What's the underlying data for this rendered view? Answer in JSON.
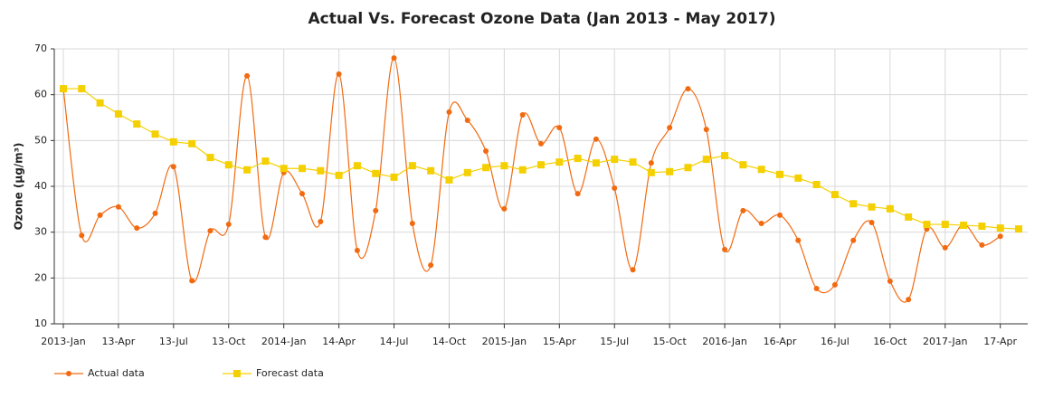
{
  "chart_data": {
    "type": "line",
    "title": "Actual Vs. Forecast Ozone Data (Jan 2013 - May 2017)",
    "y_label": "Ozone (µg/m³)",
    "categories": [
      "2013-Jan",
      null,
      null,
      "13-Apr",
      null,
      null,
      "13-Jul",
      null,
      null,
      "13-Oct",
      null,
      null,
      "2014-Jan",
      null,
      null,
      "14-Apr",
      null,
      null,
      "14-Jul",
      null,
      null,
      "14-Oct",
      null,
      null,
      "2015-Jan",
      null,
      null,
      "15-Apr",
      null,
      null,
      "15-Jul",
      null,
      null,
      "15-Oct",
      null,
      null,
      "2016-Jan",
      null,
      null,
      "16-Apr",
      null,
      null,
      "16-Jul",
      null,
      null,
      "16-Oct",
      null,
      null,
      "2017-Jan",
      null,
      null,
      "17-Apr",
      null
    ],
    "series": [
      {
        "name": "Actual data",
        "color": "#f26a10",
        "marker": "circle",
        "smooth": true,
        "values": [
          61.3,
          29.3,
          33.7,
          35.5,
          30.9,
          34.1,
          44.3,
          19.4,
          30.3,
          31.7,
          64.1,
          28.9,
          43.0,
          38.4,
          32.3,
          64.5,
          26.0,
          34.7,
          68.0,
          31.9,
          22.8,
          56.2,
          54.4,
          47.7,
          35.1,
          55.6,
          49.3,
          52.8,
          38.4,
          50.3,
          39.6,
          21.8,
          45.1,
          52.8,
          61.3,
          52.4,
          26.2,
          34.7,
          31.9,
          33.7,
          28.2,
          17.7,
          18.5,
          28.2,
          32.1,
          19.3,
          15.3,
          30.7,
          26.6,
          31.7,
          27.2,
          29.1,
          null
        ]
      },
      {
        "name": "Forecast data",
        "color": "#f5d000",
        "marker": "square",
        "smooth": false,
        "values": [
          61.3,
          61.3,
          58.2,
          55.8,
          53.6,
          51.4,
          49.7,
          49.3,
          46.3,
          44.7,
          43.6,
          45.5,
          43.9,
          43.9,
          43.4,
          42.4,
          44.5,
          42.8,
          42.0,
          44.5,
          43.4,
          41.4,
          43.0,
          44.1,
          44.5,
          43.6,
          44.7,
          45.3,
          46.1,
          45.1,
          45.9,
          45.3,
          43.0,
          43.2,
          44.1,
          45.9,
          46.7,
          44.7,
          43.7,
          42.6,
          41.8,
          40.4,
          38.2,
          36.2,
          35.5,
          35.1,
          33.3,
          31.7,
          31.7,
          31.5,
          31.3,
          30.9,
          30.7
        ]
      }
    ],
    "ylim": [
      10,
      70
    ],
    "yticks": [
      10,
      20,
      30,
      40,
      50,
      60,
      70
    ],
    "grid": true
  }
}
